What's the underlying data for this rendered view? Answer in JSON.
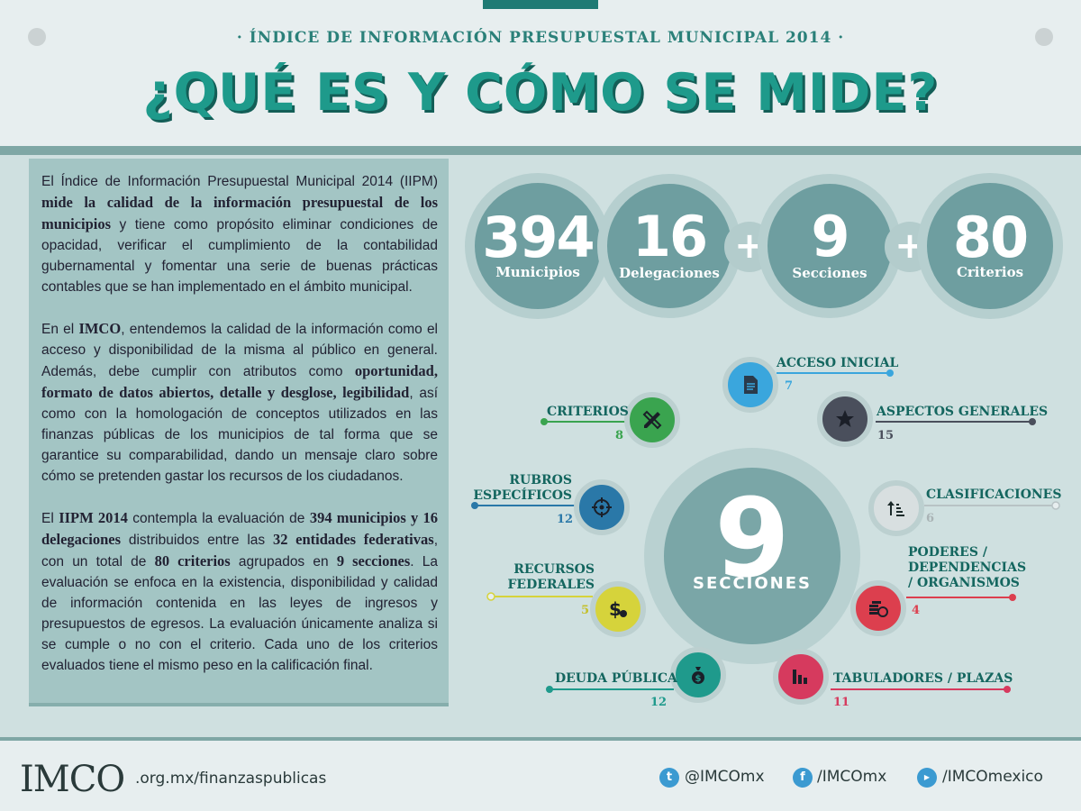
{
  "header": {
    "subtitle": "· ÍNDICE DE INFORMACIÓN PRESUPUESTAL MUNICIPAL 2014 ·",
    "title": "¿QUÉ ES Y CÓMO SE MIDE?"
  },
  "description": {
    "p1_a": "El Índice de Información Presupuestal Municipal 2014 (IIPM) ",
    "p1_b": "mide la calidad de la información presupuestal de los municipios",
    "p1_c": " y tiene como propósito eliminar condiciones de opacidad, verificar el cumplimiento de la contabilidad gubernamental y fomentar una serie de buenas prácticas contables que se han implementado en el ámbito municipal.",
    "p2_a": "En el ",
    "p2_b": "IMCO",
    "p2_c": ", entendemos la calidad de la información como el acceso y disponibilidad de la misma al público en general. Además, debe cumplir con atributos como ",
    "p2_d": "oportunidad, formato de datos abiertos, detalle y desglose, legibilidad",
    "p2_e": ", así como con la homologación de conceptos utilizados en las finanzas públicas de los municipios de tal forma que se garantice su comparabilidad, dando un mensaje claro sobre cómo se pretenden gastar los recursos de los ciudadanos.",
    "p3_a": "El ",
    "p3_b": "IIPM 2014",
    "p3_c": " contempla la evaluación de ",
    "p3_d": "394 municipios y 16 delegaciones",
    "p3_e": " distribuidos entre las ",
    "p3_f": "32 entidades federativas",
    "p3_g": ", con un total de ",
    "p3_h": "80 criterios",
    "p3_i": " agrupados en ",
    "p3_j": "9 secciones",
    "p3_k": ". La evaluación se enfoca en la existencia, disponibilidad y calidad de información contenida en las leyes de ingresos y presupuestos de egresos. La evaluación únicamente analiza si se cumple o no con el criterio. Cada uno de los criterios evaluados tiene el mismo peso en la calificación final."
  },
  "stats": [
    {
      "number": "394",
      "label": "Municipios"
    },
    {
      "number": "16",
      "label": "Delegaciones"
    },
    {
      "number": "9",
      "label": "Secciones"
    },
    {
      "number": "80",
      "label": "Criterios"
    }
  ],
  "plus": "+",
  "hub": {
    "number": "9",
    "label": "SECCIONES"
  },
  "sections": [
    {
      "label": "ACCESO INICIAL",
      "count": "7",
      "color": "#3aa6dd",
      "icon": "document-icon"
    },
    {
      "label": "ASPECTOS GENERALES",
      "count": "15",
      "color": "#4a4f5c",
      "icon": "star-icon"
    },
    {
      "label": "CLASIFICACIONES",
      "count": "6",
      "color": "#c5cdcf",
      "icon": "sort-icon"
    },
    {
      "label": "PODERES / DEPENDENCIAS / ORGANISMOS",
      "count": "4",
      "color": "#dc3f4e",
      "icon": "coins-icon"
    },
    {
      "label": "TABULADORES / PLAZAS",
      "count": "11",
      "color": "#d63a5e",
      "icon": "bar-chart-icon"
    },
    {
      "label": "DEUDA PÚBLICA",
      "count": "12",
      "color": "#1f9a8c",
      "icon": "money-bag-icon"
    },
    {
      "label": "RECURSOS FEDERALES",
      "count": "5",
      "color": "#d6d33b",
      "icon": "dollar-icon"
    },
    {
      "label": "RUBROS ESPECÍFICOS",
      "count": "12",
      "color": "#2a78a8",
      "icon": "target-icon"
    },
    {
      "label": "CRITERIOS",
      "count": "8",
      "color": "#3aa44f",
      "icon": "pencil-ruler-icon"
    }
  ],
  "footer": {
    "logo": "IMCO",
    "site": ".org.mx/finanzaspublicas",
    "twitter": "@IMCOmx",
    "facebook": "/IMCOmx",
    "youtube": "/IMCOmexico"
  }
}
